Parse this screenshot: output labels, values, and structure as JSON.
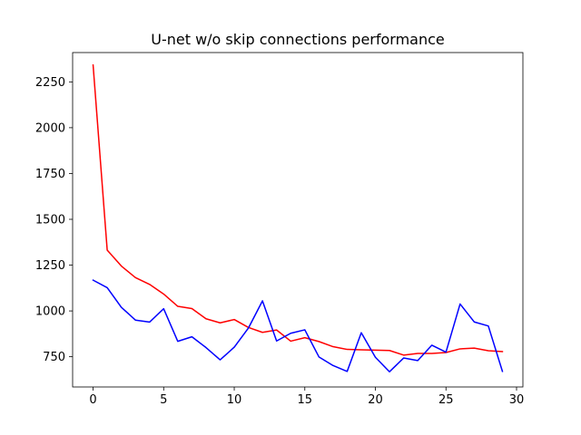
{
  "chart_data": {
    "type": "line",
    "title": "U-net w/o skip connections performance",
    "xlabel": "",
    "ylabel": "",
    "xlim": [
      -1.45,
      30.45
    ],
    "ylim": [
      585,
      2410
    ],
    "xticks": [
      0,
      5,
      10,
      15,
      20,
      25,
      30
    ],
    "yticks": [
      750,
      1000,
      1250,
      1500,
      1750,
      2000,
      2250
    ],
    "grid": false,
    "legend": "none",
    "x": [
      0,
      1,
      2,
      3,
      4,
      5,
      6,
      7,
      8,
      9,
      10,
      11,
      12,
      13,
      14,
      15,
      16,
      17,
      18,
      19,
      20,
      21,
      22,
      23,
      24,
      25,
      26,
      27,
      28,
      29
    ],
    "series": [
      {
        "color": "#ff0000",
        "values": [
          2342,
          1332,
          1245,
          1182,
          1145,
          1092,
          1025,
          1013,
          957,
          935,
          953,
          910,
          883,
          896,
          835,
          854,
          833,
          805,
          790,
          788,
          786,
          784,
          759,
          768,
          768,
          773,
          793,
          797,
          783,
          778
        ]
      },
      {
        "color": "#0000ff",
        "values": [
          1168,
          1127,
          1020,
          950,
          939,
          1012,
          834,
          859,
          800,
          733,
          802,
          906,
          1055,
          836,
          878,
          897,
          749,
          702,
          670,
          881,
          747,
          668,
          743,
          729,
          813,
          775,
          1038,
          940,
          918,
          670
        ]
      }
    ]
  }
}
